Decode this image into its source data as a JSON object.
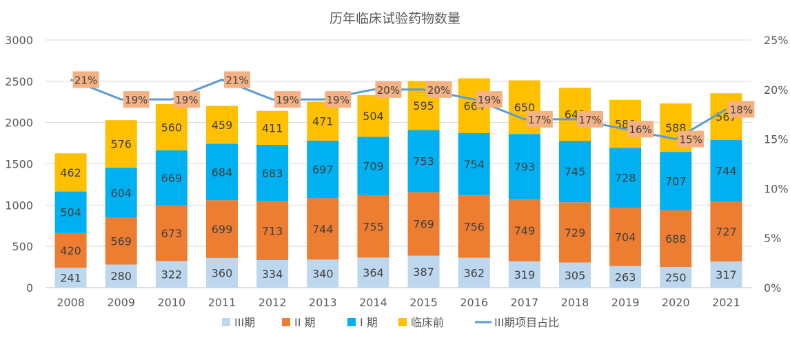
{
  "chart_data": {
    "type": "bar",
    "stacked": true,
    "title": "历年临床试验药物数量",
    "categories": [
      "2008",
      "2009",
      "2010",
      "2011",
      "2012",
      "2013",
      "2014",
      "2015",
      "2016",
      "2017",
      "2018",
      "2019",
      "2020",
      "2021"
    ],
    "series": [
      {
        "name": "III期",
        "color": "#bdd7ee",
        "values": [
          241,
          280,
          322,
          360,
          334,
          340,
          364,
          387,
          362,
          319,
          305,
          263,
          250,
          317
        ]
      },
      {
        "name": "II 期",
        "color": "#ed7d31",
        "values": [
          420,
          569,
          673,
          699,
          713,
          744,
          755,
          769,
          756,
          749,
          729,
          704,
          688,
          727
        ]
      },
      {
        "name": "I 期",
        "color": "#00b0f0",
        "values": [
          504,
          604,
          669,
          684,
          683,
          697,
          709,
          753,
          754,
          793,
          745,
          728,
          707,
          744
        ]
      },
      {
        "name": "临床前",
        "color": "#ffc000",
        "values": [
          462,
          576,
          560,
          459,
          411,
          471,
          504,
          595,
          664,
          650,
          642,
          580,
          588,
          567
        ]
      }
    ],
    "line_series": {
      "name": "III期项目占比",
      "color": "#5b9bd5",
      "values": [
        21,
        19,
        19,
        21,
        19,
        19,
        20,
        20,
        19,
        17,
        17,
        16,
        15,
        18
      ],
      "labels": [
        "21%",
        "19%",
        "19%",
        "21%",
        "19%",
        "19%",
        "20%",
        "20%",
        "19%",
        "17%",
        "17%",
        "16%",
        "15%",
        "18%"
      ],
      "label_bg": "#f4b183"
    },
    "y_axis_left": {
      "min": 0,
      "max": 3000,
      "ticks": [
        0,
        500,
        1000,
        1500,
        2000,
        2500,
        3000
      ]
    },
    "y_axis_right": {
      "min": 0,
      "max": 25,
      "ticks": [
        "0%",
        "5%",
        "10%",
        "15%",
        "20%",
        "25%"
      ]
    },
    "grid": true,
    "legend": "bottom"
  }
}
